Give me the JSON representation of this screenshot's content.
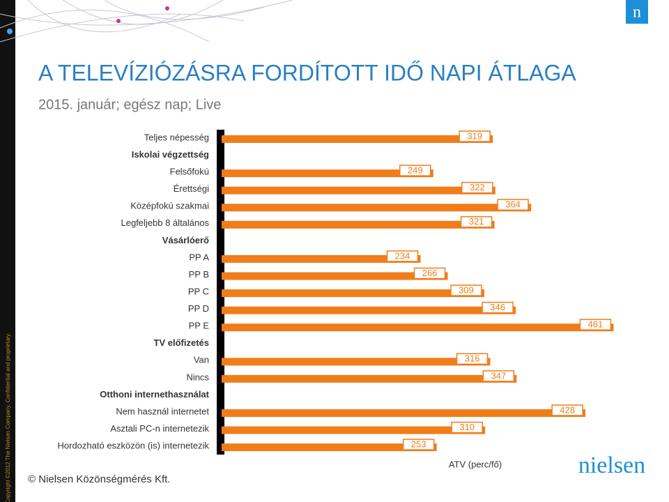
{
  "chart_data": {
    "type": "bar",
    "orientation": "horizontal",
    "title": "A TELEVÍZIÓZÁSRA FORDÍTOTT IDŐ NAPI ÁTLAGA",
    "subtitle": "2015. január; egész nap; Live",
    "x_label": "ATV (perc/fő)",
    "categories": [
      "Teljes népesség",
      "Iskolai végzettség",
      "Felsőfokú",
      "Érettségi",
      "Középfokú szakmai",
      "Legfeljebb 8 általános",
      "Vásárlóerő",
      "PP A",
      "PP B",
      "PP C",
      "PP D",
      "PP E",
      "TV előfizetés",
      "Van",
      "Nincs",
      "Otthoni internethasználat",
      "Nem használ internetet",
      "Asztali PC-n internetezik",
      "Hordozható eszközön (is) internetezik"
    ],
    "values": [
      319,
      null,
      249,
      322,
      364,
      321,
      null,
      234,
      266,
      309,
      346,
      461,
      null,
      316,
      347,
      null,
      428,
      310,
      253
    ],
    "color": "#f07d1a",
    "xlim": [
      0,
      500
    ]
  },
  "footer": "© Nielsen Közönségmérés Kft.",
  "copyright": "Copyright ©2012 The Nielsen Company. Confidential and proprietary.",
  "logo": "nielsen",
  "corner_logo": "n"
}
